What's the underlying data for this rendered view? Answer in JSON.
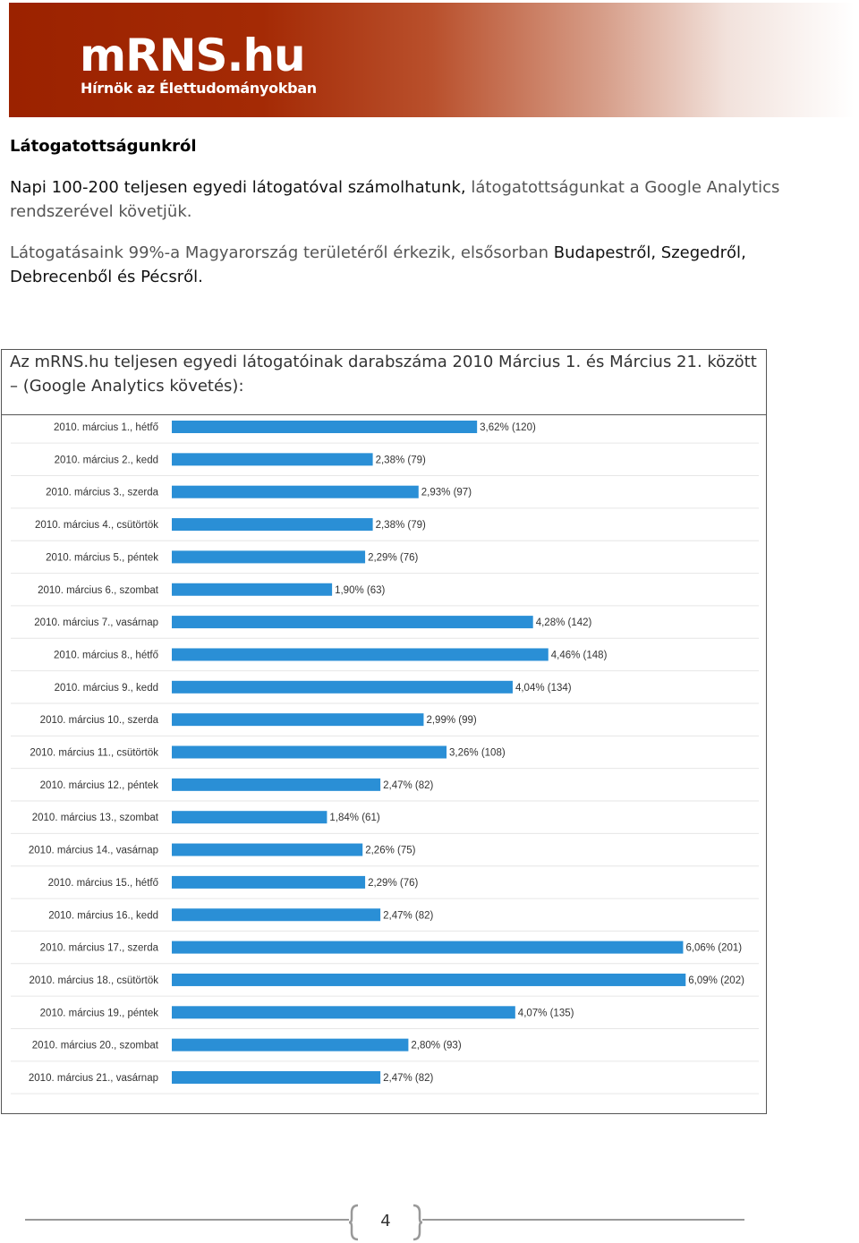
{
  "header": {
    "logo_text": "mRNS.hu",
    "tagline": "Hírnök az Élettudományokban",
    "gradient_colors": [
      "#9b2200",
      "#ffffff"
    ]
  },
  "section": {
    "title": "Látogatottságunkról",
    "p1_dark": "Napi 100-200 teljesen egyedi látogatóval számolhatunk,",
    "p1_gray": " látogatottságunkat a Google Analytics rendszerével követjük.",
    "p2_gray": "Látogatásaink 99%-a Magyarország területéről érkezik, elsősorban",
    "p2_dark": " Budapestről, Szegedről, Debrecenből és Pécsről."
  },
  "chart_caption": "Az mRNS.hu teljesen egyedi látogatóinak darabszáma 2010 Március 1. és Március 21. között – (Google Analytics követés):",
  "chart_data": {
    "type": "bar",
    "orientation": "horizontal",
    "bar_color": "#2a8fd6",
    "categories": [
      "2010. március 1., hétfő",
      "2010. március 2., kedd",
      "2010. március 3., szerda",
      "2010. március 4., csütörtök",
      "2010. március 5., péntek",
      "2010. március 6., szombat",
      "2010. március 7., vasárnap",
      "2010. március 8., hétfő",
      "2010. március 9., kedd",
      "2010. március 10., szerda",
      "2010. március 11., csütörtök",
      "2010. március 12., péntek",
      "2010. március 13., szombat",
      "2010. március 14., vasárnap",
      "2010. március 15., hétfő",
      "2010. március 16., kedd",
      "2010. március 17., szerda",
      "2010. március 18., csütörtök",
      "2010. március 19., péntek",
      "2010. március 20., szombat",
      "2010. március 21., vasárnap"
    ],
    "values": [
      120,
      79,
      97,
      79,
      76,
      63,
      142,
      148,
      134,
      99,
      108,
      82,
      61,
      75,
      76,
      82,
      201,
      202,
      135,
      93,
      82
    ],
    "value_labels": [
      "3,62% (120)",
      "2,38% (79)",
      "2,93% (97)",
      "2,38% (79)",
      "2,29% (76)",
      "1,90% (63)",
      "4,28% (142)",
      "4,46% (148)",
      "4,04% (134)",
      "2,99% (99)",
      "3,26% (108)",
      "2,47% (82)",
      "1,84% (61)",
      "2,26% (75)",
      "2,29% (76)",
      "2,47% (82)",
      "6,06% (201)",
      "6,09% (202)",
      "4,07% (135)",
      "2,80% (93)",
      "2,47% (82)"
    ]
  },
  "footer": {
    "page_number": "4"
  }
}
